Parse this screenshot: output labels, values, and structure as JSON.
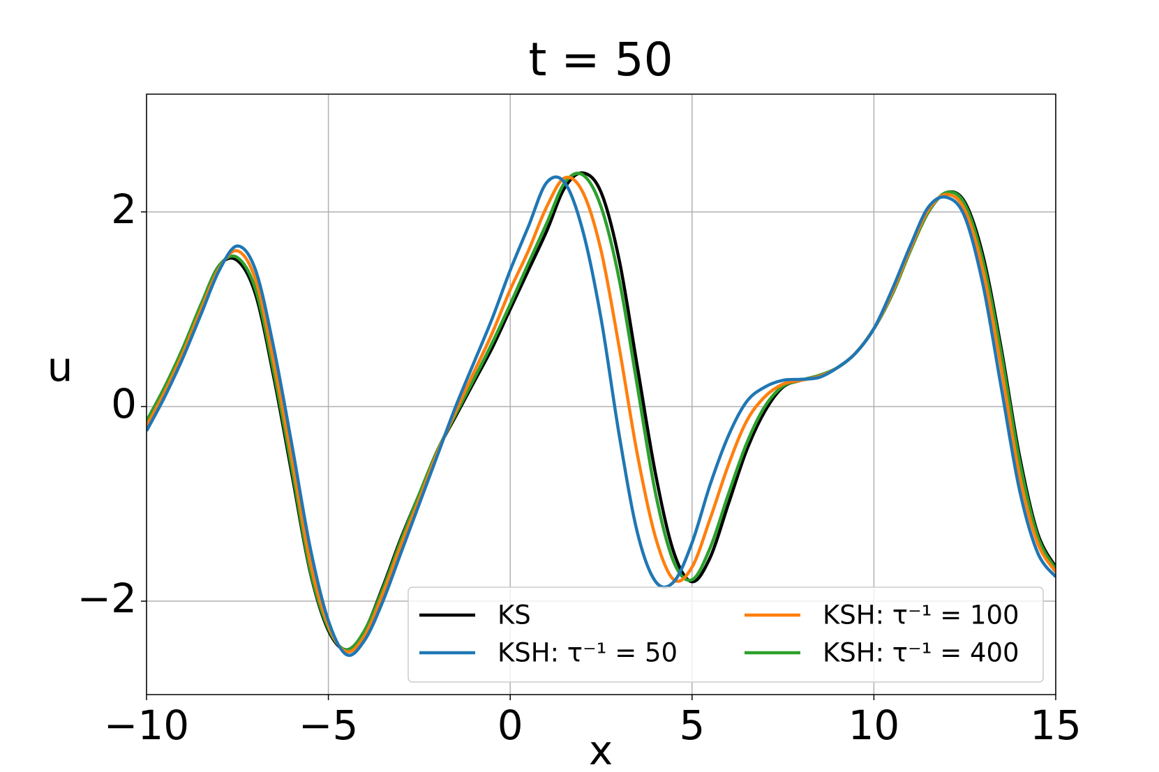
{
  "chart_data": {
    "type": "line",
    "title": "t = 50",
    "xlabel": "x",
    "ylabel": "u",
    "x": [
      -10,
      -9.5,
      -9,
      -8.5,
      -8,
      -7.5,
      -7,
      -6.5,
      -6,
      -5.5,
      -5,
      -4.5,
      -4,
      -3.5,
      -3,
      -2.5,
      -2,
      -1.5,
      -1,
      -0.5,
      0,
      0.5,
      1,
      1.5,
      2,
      2.5,
      3,
      3.5,
      4,
      4.5,
      5,
      5.5,
      6,
      6.5,
      7,
      7.5,
      8,
      8.5,
      9,
      9.5,
      10,
      10.5,
      11,
      11.5,
      12,
      12.5,
      13,
      13.5,
      14,
      14.5,
      15
    ],
    "series": [
      {
        "name": "KS",
        "color": "#000000",
        "values": [
          -0.15,
          0.2,
          0.6,
          1.05,
          1.45,
          1.5,
          1.15,
          0.3,
          -0.7,
          -1.7,
          -2.3,
          -2.5,
          -2.3,
          -1.85,
          -1.35,
          -0.9,
          -0.45,
          -0.1,
          0.25,
          0.6,
          1.0,
          1.4,
          1.8,
          2.25,
          2.4,
          2.2,
          1.5,
          0.4,
          -0.7,
          -1.5,
          -1.8,
          -1.55,
          -1.0,
          -0.45,
          -0.05,
          0.2,
          0.27,
          0.32,
          0.4,
          0.55,
          0.8,
          1.15,
          1.6,
          2.0,
          2.2,
          2.1,
          1.55,
          0.6,
          -0.5,
          -1.3,
          -1.65
        ]
      },
      {
        "name": "KSH: τ⁻¹ = 50",
        "color": "#1f77b4",
        "values": [
          -0.25,
          0.1,
          0.5,
          0.95,
          1.4,
          1.65,
          1.4,
          0.6,
          -0.4,
          -1.45,
          -2.2,
          -2.55,
          -2.4,
          -2.0,
          -1.5,
          -1.0,
          -0.5,
          0.0,
          0.45,
          0.9,
          1.4,
          1.85,
          2.3,
          2.3,
          1.8,
          0.9,
          -0.3,
          -1.3,
          -1.8,
          -1.8,
          -1.4,
          -0.8,
          -0.3,
          0.05,
          0.2,
          0.27,
          0.28,
          0.3,
          0.4,
          0.55,
          0.8,
          1.2,
          1.65,
          2.05,
          2.15,
          1.95,
          1.25,
          0.2,
          -0.85,
          -1.5,
          -1.75
        ]
      },
      {
        "name": "KSH: τ⁻¹ = 100",
        "color": "#ff7f0e",
        "values": [
          -0.2,
          0.15,
          0.55,
          1.0,
          1.42,
          1.6,
          1.3,
          0.45,
          -0.55,
          -1.6,
          -2.25,
          -2.52,
          -2.35,
          -1.92,
          -1.42,
          -0.95,
          -0.47,
          -0.05,
          0.35,
          0.75,
          1.2,
          1.6,
          2.05,
          2.35,
          2.2,
          1.6,
          0.6,
          -0.5,
          -1.35,
          -1.78,
          -1.65,
          -1.15,
          -0.6,
          -0.15,
          0.1,
          0.23,
          0.27,
          0.31,
          0.4,
          0.55,
          0.8,
          1.17,
          1.62,
          2.02,
          2.18,
          2.02,
          1.4,
          0.4,
          -0.7,
          -1.4,
          -1.7
        ]
      },
      {
        "name": "KSH: τ⁻¹ = 400",
        "color": "#2ca02c",
        "values": [
          -0.15,
          0.2,
          0.6,
          1.05,
          1.45,
          1.53,
          1.2,
          0.35,
          -0.65,
          -1.68,
          -2.28,
          -2.5,
          -2.3,
          -1.87,
          -1.37,
          -0.9,
          -0.45,
          -0.08,
          0.28,
          0.65,
          1.05,
          1.47,
          1.88,
          2.3,
          2.38,
          2.05,
          1.3,
          0.2,
          -0.9,
          -1.6,
          -1.78,
          -1.45,
          -0.9,
          -0.38,
          0.0,
          0.21,
          0.27,
          0.32,
          0.4,
          0.55,
          0.8,
          1.15,
          1.6,
          2.0,
          2.2,
          2.08,
          1.5,
          0.55,
          -0.55,
          -1.33,
          -1.67
        ]
      }
    ],
    "xlim": [
      -10,
      15
    ],
    "ylim": [
      -2.96,
      3.21
    ],
    "xticks": [
      {
        "value": -10,
        "label": "−10"
      },
      {
        "value": -5,
        "label": "−5"
      },
      0,
      5,
      10,
      15
    ],
    "yticks": [
      {
        "value": -2,
        "label": "−2"
      },
      0,
      2
    ],
    "grid": true,
    "legend": "lower right"
  }
}
